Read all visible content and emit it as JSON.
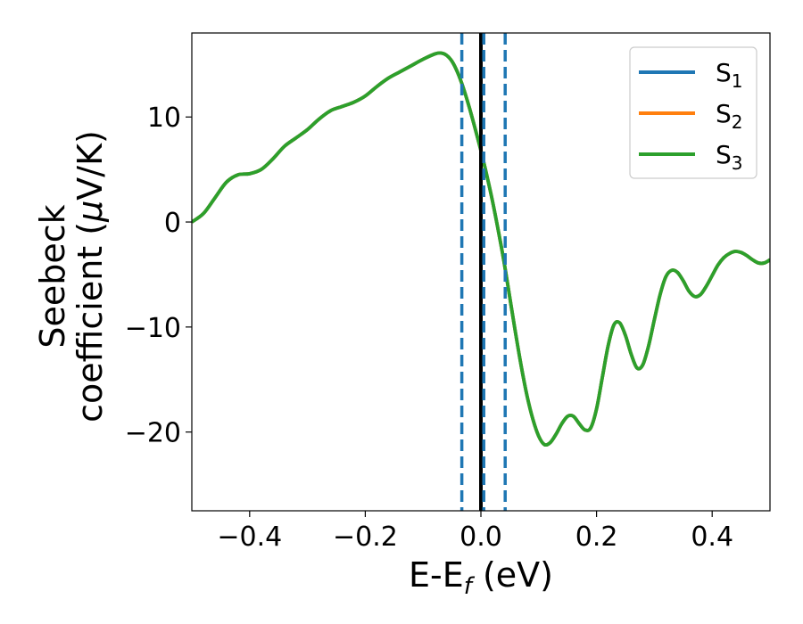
{
  "chart_data": {
    "type": "line",
    "xlabel": {
      "main": "E-E",
      "sub": "f",
      "tail": " (eV)"
    },
    "ylabel": {
      "line1": "Seebeck",
      "line2_pre": "coefficient  (",
      "mu": "μ",
      "line2_post": "V/K)"
    },
    "xlim": [
      -0.5,
      0.5
    ],
    "ylim": [
      -27.5,
      18.0
    ],
    "xticks": [
      {
        "value": -0.4,
        "label": "−0.4"
      },
      {
        "value": -0.2,
        "label": "−0.2"
      },
      {
        "value": 0.0,
        "label": "0.0"
      },
      {
        "value": 0.2,
        "label": "0.2"
      },
      {
        "value": 0.4,
        "label": "0.4"
      }
    ],
    "yticks": [
      {
        "value": 10,
        "label": "10"
      },
      {
        "value": 0,
        "label": "0"
      },
      {
        "value": -10,
        "label": "−10"
      },
      {
        "value": -20,
        "label": "−20"
      }
    ],
    "legend_position": "top-right",
    "series": [
      {
        "name": {
          "base": "S",
          "sub": "1"
        },
        "color": "#1f77b4"
      },
      {
        "name": {
          "base": "S",
          "sub": "2"
        },
        "color": "#ff7f0e"
      },
      {
        "name": {
          "base": "S",
          "sub": "3"
        },
        "color": "#2ca02c"
      }
    ],
    "curve": {
      "x": [
        -0.5,
        -0.48,
        -0.46,
        -0.44,
        -0.42,
        -0.4,
        -0.38,
        -0.36,
        -0.34,
        -0.32,
        -0.3,
        -0.28,
        -0.26,
        -0.24,
        -0.22,
        -0.2,
        -0.18,
        -0.16,
        -0.14,
        -0.12,
        -0.1,
        -0.08,
        -0.07,
        -0.06,
        -0.05,
        -0.04,
        -0.03,
        -0.02,
        -0.01,
        0.0,
        0.01,
        0.02,
        0.03,
        0.04,
        0.05,
        0.06,
        0.07,
        0.08,
        0.09,
        0.1,
        0.11,
        0.12,
        0.13,
        0.14,
        0.15,
        0.16,
        0.17,
        0.18,
        0.19,
        0.2,
        0.21,
        0.22,
        0.23,
        0.24,
        0.25,
        0.26,
        0.27,
        0.28,
        0.29,
        0.3,
        0.31,
        0.32,
        0.33,
        0.34,
        0.35,
        0.36,
        0.37,
        0.38,
        0.39,
        0.4,
        0.41,
        0.42,
        0.43,
        0.44,
        0.45,
        0.46,
        0.47,
        0.48,
        0.49,
        0.5
      ],
      "y": [
        0.0,
        0.8,
        2.3,
        3.8,
        4.5,
        4.6,
        5.0,
        6.0,
        7.2,
        8.0,
        8.8,
        9.8,
        10.6,
        11.0,
        11.4,
        12.0,
        12.9,
        13.7,
        14.3,
        14.9,
        15.5,
        16.0,
        16.1,
        15.9,
        15.3,
        14.2,
        12.7,
        10.9,
        8.9,
        6.8,
        4.5,
        2.0,
        -0.8,
        -3.8,
        -7.2,
        -10.6,
        -13.8,
        -16.6,
        -18.8,
        -20.4,
        -21.2,
        -21.0,
        -20.2,
        -19.2,
        -18.5,
        -18.5,
        -19.2,
        -19.8,
        -19.6,
        -17.8,
        -14.8,
        -11.8,
        -9.8,
        -9.6,
        -10.8,
        -12.6,
        -13.9,
        -13.6,
        -11.8,
        -9.3,
        -6.9,
        -5.2,
        -4.6,
        -4.8,
        -5.6,
        -6.6,
        -7.1,
        -6.9,
        -6.1,
        -5.1,
        -4.1,
        -3.4,
        -3.0,
        -2.8,
        -2.9,
        -3.2,
        -3.6,
        -3.9,
        -3.9,
        -3.6
      ]
    },
    "vlines": [
      {
        "x": 0.0,
        "style": "solid",
        "color": "#000000"
      },
      {
        "x": -0.033,
        "style": "dashed",
        "color": "#1f77b4"
      },
      {
        "x": 0.005,
        "style": "dashed",
        "color": "#1f77b4"
      },
      {
        "x": 0.042,
        "style": "dashed",
        "color": "#1f77b4"
      }
    ]
  }
}
